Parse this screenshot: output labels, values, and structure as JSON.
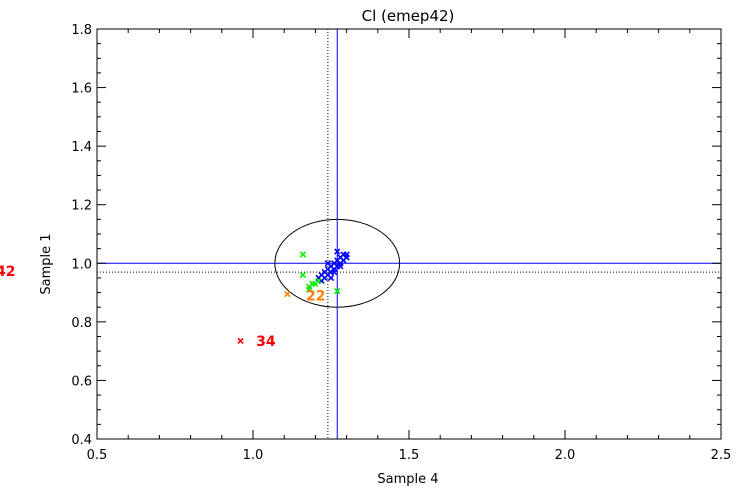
{
  "chart_data": {
    "type": "scatter",
    "title": "Cl (emep42)",
    "xlabel": "Sample 4",
    "ylabel": "Sample 1",
    "xlim": [
      0.5,
      2.5
    ],
    "ylim": [
      0.4,
      1.8
    ],
    "x_ticks": [
      "0.5",
      "1.0",
      "1.5",
      "2.0",
      "2.5"
    ],
    "y_ticks": [
      "0.4",
      "0.6",
      "0.8",
      "1.0",
      "1.2",
      "1.4",
      "1.6",
      "1.8"
    ],
    "grid": false,
    "series": [
      {
        "color": "#0000ff",
        "marker": "x",
        "points": [
          [
            1.21,
            0.95
          ],
          [
            1.22,
            0.96
          ],
          [
            1.23,
            0.95
          ],
          [
            1.23,
            0.97
          ],
          [
            1.24,
            0.96
          ],
          [
            1.24,
            0.98
          ],
          [
            1.25,
            0.97
          ],
          [
            1.25,
            0.99
          ],
          [
            1.26,
            0.98
          ],
          [
            1.26,
            1.0
          ],
          [
            1.27,
            0.99
          ],
          [
            1.27,
            1.01
          ],
          [
            1.28,
            1.0
          ],
          [
            1.28,
            1.02
          ],
          [
            1.29,
            1.01
          ],
          [
            1.29,
            1.03
          ],
          [
            1.3,
            1.02
          ],
          [
            1.3,
            1.03
          ],
          [
            1.22,
            0.94
          ],
          [
            1.25,
            0.95
          ],
          [
            1.26,
            0.97
          ],
          [
            1.28,
            0.99
          ],
          [
            1.27,
            1.04
          ],
          [
            1.24,
            1.0
          ]
        ]
      },
      {
        "color": "#00ee00",
        "marker": "x",
        "points": [
          [
            1.16,
            1.03
          ],
          [
            1.16,
            0.96
          ],
          [
            1.18,
            0.92
          ],
          [
            1.19,
            0.93
          ],
          [
            1.2,
            0.93
          ],
          [
            1.18,
            0.91
          ],
          [
            1.27,
            0.905
          ],
          [
            1.21,
            0.94
          ]
        ]
      },
      {
        "color": "#ff8000",
        "marker": "x",
        "points": [
          [
            1.11,
            0.895
          ]
        ]
      },
      {
        "color": "#ff0000",
        "marker": "x",
        "points": [
          [
            0.96,
            0.735
          ]
        ]
      }
    ],
    "annotations": [
      {
        "text": "34",
        "x": 1.01,
        "y": 0.735,
        "color": "#ff0000"
      },
      {
        "text": "22",
        "x": 1.17,
        "y": 0.89,
        "color": "#ff8000"
      }
    ],
    "reference_lines": {
      "solid_color": "#0000ff",
      "solid_x": 1.27,
      "solid_y": 1.0,
      "dotted_x": 1.24,
      "dotted_y": 0.97
    },
    "ellipse": {
      "cx": 1.27,
      "cy": 1.0,
      "rx": 0.2,
      "ry": 0.15
    },
    "cut_label": {
      "text": "42",
      "color": "#ff0000"
    }
  }
}
